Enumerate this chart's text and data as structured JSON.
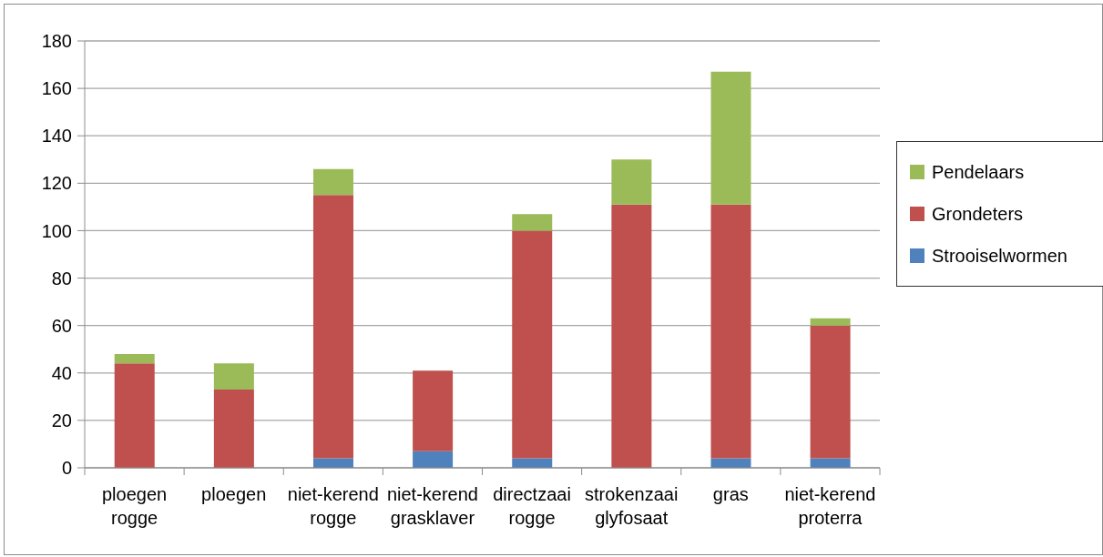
{
  "chart_data": {
    "type": "bar",
    "stacked": true,
    "categories": [
      "ploegen rogge",
      "ploegen",
      "niet-kerend rogge",
      "niet-kerend grasklaver",
      "directzaai rogge",
      "strokenzaai glyfosaat",
      "gras",
      "niet-kerend proterra"
    ],
    "series": [
      {
        "name": "Strooiselwormen",
        "color": "#4f81bd",
        "values": [
          0,
          0,
          4,
          7,
          4,
          0,
          4,
          4
        ]
      },
      {
        "name": "Grondeters",
        "color": "#c0504d",
        "values": [
          44,
          33,
          111,
          34,
          96,
          111,
          107,
          56
        ]
      },
      {
        "name": "Pendelaars",
        "color": "#9bbb59",
        "values": [
          4,
          11,
          11,
          0,
          7,
          19,
          56,
          3
        ]
      }
    ],
    "ylim": [
      0,
      180
    ],
    "yticks": [
      0,
      20,
      40,
      60,
      80,
      100,
      120,
      140,
      160,
      180
    ],
    "grid": "y",
    "legend": "right"
  }
}
